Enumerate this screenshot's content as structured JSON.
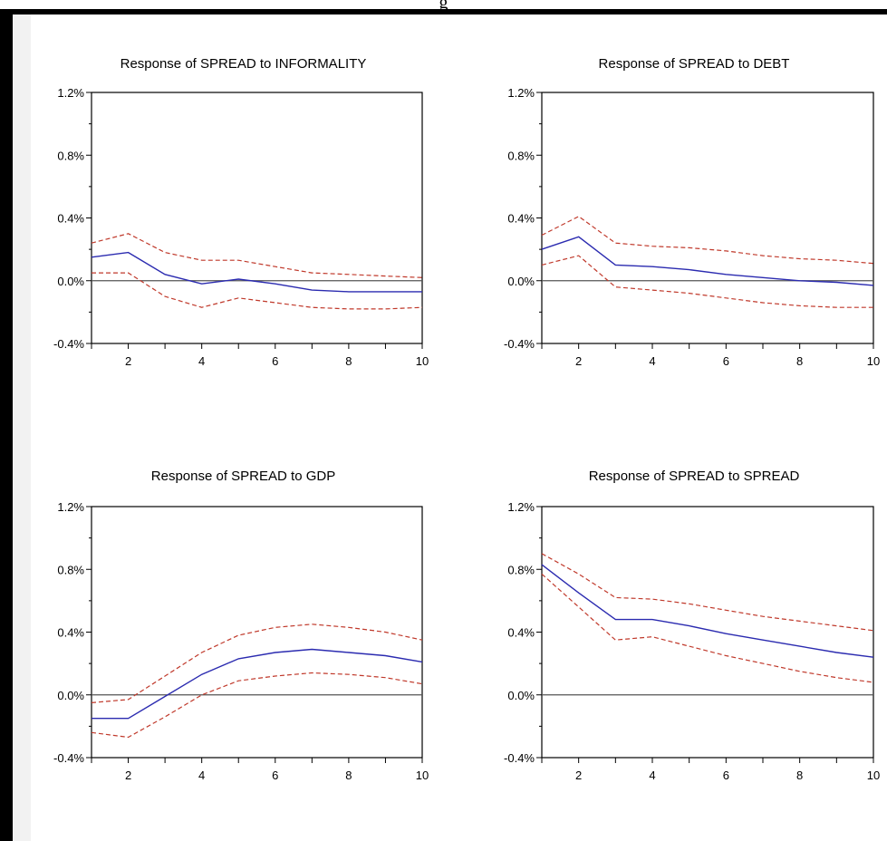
{
  "page": {
    "title_fragment": "g"
  },
  "colors": {
    "impulse": "#2b2bb0",
    "band": "#c0392b",
    "zero_line": "#555555",
    "frame": "#000000"
  },
  "chart_data": [
    {
      "type": "line",
      "title": "Response of SPREAD to INFORMALITY",
      "x": [
        1,
        2,
        3,
        4,
        5,
        6,
        7,
        8,
        9,
        10
      ],
      "xticks": [
        "2",
        "4",
        "6",
        "8",
        "10"
      ],
      "yticks": [
        "1.2%",
        "0.8%",
        "0.4%",
        "0.0%",
        "-0.4%"
      ],
      "ylim": [
        -0.4,
        1.2
      ],
      "xlim": [
        1,
        10
      ],
      "series": [
        {
          "role": "impulse",
          "values": [
            0.15,
            0.18,
            0.04,
            -0.02,
            0.01,
            -0.02,
            -0.06,
            -0.07,
            -0.07,
            -0.07
          ]
        },
        {
          "role": "upper",
          "values": [
            0.24,
            0.3,
            0.18,
            0.13,
            0.13,
            0.09,
            0.05,
            0.04,
            0.03,
            0.02
          ]
        },
        {
          "role": "lower",
          "values": [
            0.05,
            0.05,
            -0.1,
            -0.17,
            -0.11,
            -0.14,
            -0.17,
            -0.18,
            -0.18,
            -0.17
          ]
        }
      ]
    },
    {
      "type": "line",
      "title": "Response of SPREAD to DEBT",
      "x": [
        1,
        2,
        3,
        4,
        5,
        6,
        7,
        8,
        9,
        10
      ],
      "xticks": [
        "2",
        "4",
        "6",
        "8",
        "10"
      ],
      "yticks": [
        "1.2%",
        "0.8%",
        "0.4%",
        "0.0%",
        "-0.4%"
      ],
      "ylim": [
        -0.4,
        1.2
      ],
      "xlim": [
        1,
        10
      ],
      "series": [
        {
          "role": "impulse",
          "values": [
            0.2,
            0.28,
            0.1,
            0.09,
            0.07,
            0.04,
            0.02,
            0.0,
            -0.01,
            -0.03
          ]
        },
        {
          "role": "upper",
          "values": [
            0.29,
            0.41,
            0.24,
            0.22,
            0.21,
            0.19,
            0.16,
            0.14,
            0.13,
            0.11
          ]
        },
        {
          "role": "lower",
          "values": [
            0.1,
            0.16,
            -0.04,
            -0.06,
            -0.08,
            -0.11,
            -0.14,
            -0.16,
            -0.17,
            -0.17
          ]
        }
      ]
    },
    {
      "type": "line",
      "title": "Response of SPREAD to GDP",
      "x": [
        1,
        2,
        3,
        4,
        5,
        6,
        7,
        8,
        9,
        10
      ],
      "xticks": [
        "2",
        "4",
        "6",
        "8",
        "10"
      ],
      "yticks": [
        "1.2%",
        "0.8%",
        "0.4%",
        "0.0%",
        "-0.4%"
      ],
      "ylim": [
        -0.4,
        1.2
      ],
      "xlim": [
        1,
        10
      ],
      "series": [
        {
          "role": "impulse",
          "values": [
            -0.15,
            -0.15,
            -0.01,
            0.13,
            0.23,
            0.27,
            0.29,
            0.27,
            0.25,
            0.21
          ]
        },
        {
          "role": "upper",
          "values": [
            -0.05,
            -0.03,
            0.12,
            0.27,
            0.38,
            0.43,
            0.45,
            0.43,
            0.4,
            0.35
          ]
        },
        {
          "role": "lower",
          "values": [
            -0.24,
            -0.27,
            -0.14,
            0.0,
            0.09,
            0.12,
            0.14,
            0.13,
            0.11,
            0.07
          ]
        }
      ]
    },
    {
      "type": "line",
      "title": "Response of SPREAD to SPREAD",
      "x": [
        1,
        2,
        3,
        4,
        5,
        6,
        7,
        8,
        9,
        10
      ],
      "xticks": [
        "2",
        "4",
        "6",
        "8",
        "10"
      ],
      "yticks": [
        "1.2%",
        "0.8%",
        "0.4%",
        "0.0%",
        "-0.4%"
      ],
      "ylim": [
        -0.4,
        1.2
      ],
      "xlim": [
        1,
        10
      ],
      "series": [
        {
          "role": "impulse",
          "values": [
            0.83,
            0.65,
            0.48,
            0.48,
            0.44,
            0.39,
            0.35,
            0.31,
            0.27,
            0.24
          ]
        },
        {
          "role": "upper",
          "values": [
            0.9,
            0.77,
            0.62,
            0.61,
            0.58,
            0.54,
            0.5,
            0.47,
            0.44,
            0.41
          ]
        },
        {
          "role": "lower",
          "values": [
            0.77,
            0.56,
            0.35,
            0.37,
            0.31,
            0.25,
            0.2,
            0.15,
            0.11,
            0.08
          ]
        }
      ]
    }
  ]
}
